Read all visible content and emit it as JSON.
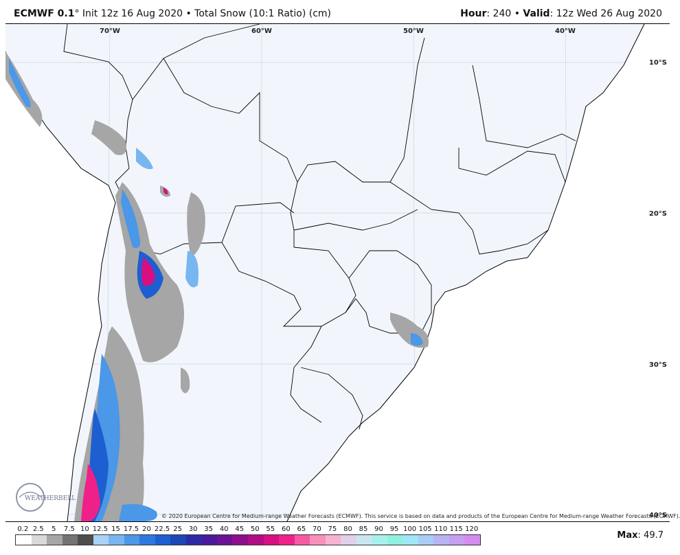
{
  "header": {
    "model": "ECMWF 0.1",
    "deg": "°",
    "init": " Init 12z 16 Aug 2020 • Total Snow (10:1 Ratio) (cm)",
    "hour_label": "Hour",
    "hour_value": ": 240 • ",
    "valid_label": "Valid",
    "valid_value": ": 12z Wed 26 Aug 2020"
  },
  "map": {
    "lon_labels": [
      "70°W",
      "60°W",
      "50°W",
      "40°W"
    ],
    "lat_labels": [
      "10°S",
      "20°S",
      "30°S",
      "40°S"
    ],
    "logo_text": "WEATHERBELL",
    "copyright": "© 2020 European Centre for Medium-range Weather Forecasts (ECMWF). This service is based on data and products of the European Centre for Medium-range Weather Forecasts (ECMWF)."
  },
  "colorbar": {
    "labels": [
      "0.2",
      "2.5",
      "5",
      "7.5",
      "10",
      "12.5",
      "15",
      "17.5",
      "20",
      "22.5",
      "25",
      "30",
      "35",
      "40",
      "45",
      "50",
      "55",
      "60",
      "65",
      "70",
      "75",
      "80",
      "85",
      "90",
      "95",
      "100",
      "105",
      "110",
      "115",
      "120"
    ],
    "colors": [
      "#ffffff",
      "#d9d9d9",
      "#a6a6a6",
      "#737373",
      "#4d4d4d",
      "#a9d3f5",
      "#78b6f0",
      "#4b97e8",
      "#2d78df",
      "#1d5fd1",
      "#1b47b8",
      "#2d2aa6",
      "#4a1a9e",
      "#6b1296",
      "#8e0f8e",
      "#b30d86",
      "#d70f80",
      "#f0208a",
      "#f55aa2",
      "#f88fbd",
      "#f6b3d1",
      "#e0d0e8",
      "#c9e6f0",
      "#a8f0ee",
      "#8ff0e0",
      "#9fe6f6",
      "#a9cdf6",
      "#b8b4f4",
      "#c79ef2",
      "#d58cf0"
    ]
  },
  "max_label": "Max",
  "max_value": ": 49.7"
}
